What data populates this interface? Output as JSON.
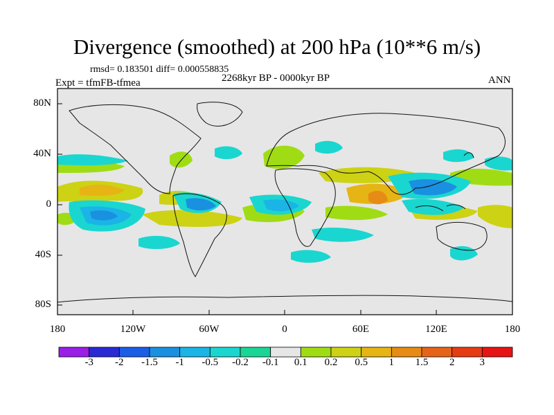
{
  "title": "Divergence (smoothed) at 200 hPa (10**6 m/s)",
  "stats_line": "rmsd= 0.183501 diff= 0.000558835",
  "period": "2268kyr BP - 0000kyr BP",
  "experiment": "Expt = tfmFB-tfmea",
  "season": "ANN",
  "axes": {
    "lat_ticks": [
      "80N",
      "40N",
      "0",
      "40S",
      "80S"
    ],
    "lon_ticks": [
      "180",
      "120W",
      "60W",
      "0",
      "60E",
      "120E",
      "180"
    ]
  },
  "colorbar": {
    "labels": [
      "-3",
      "-2",
      "-1.5",
      "-1",
      "-0.5",
      "-0.2",
      "-0.1",
      "0.1",
      "0.2",
      "0.5",
      "1",
      "1.5",
      "2",
      "3"
    ],
    "colors": [
      "#9a1ee6",
      "#2a2ad4",
      "#1a5ee6",
      "#1a90e0",
      "#1ab4e6",
      "#1ad6d0",
      "#1ad696",
      "#e6e6e6",
      "#a0dc14",
      "#cdd214",
      "#e6b414",
      "#e68c14",
      "#e6641a",
      "#e63c14",
      "#e61414"
    ]
  },
  "map_colors": {
    "ocean_bg": "#e6e6e6",
    "coast": "#111111"
  }
}
